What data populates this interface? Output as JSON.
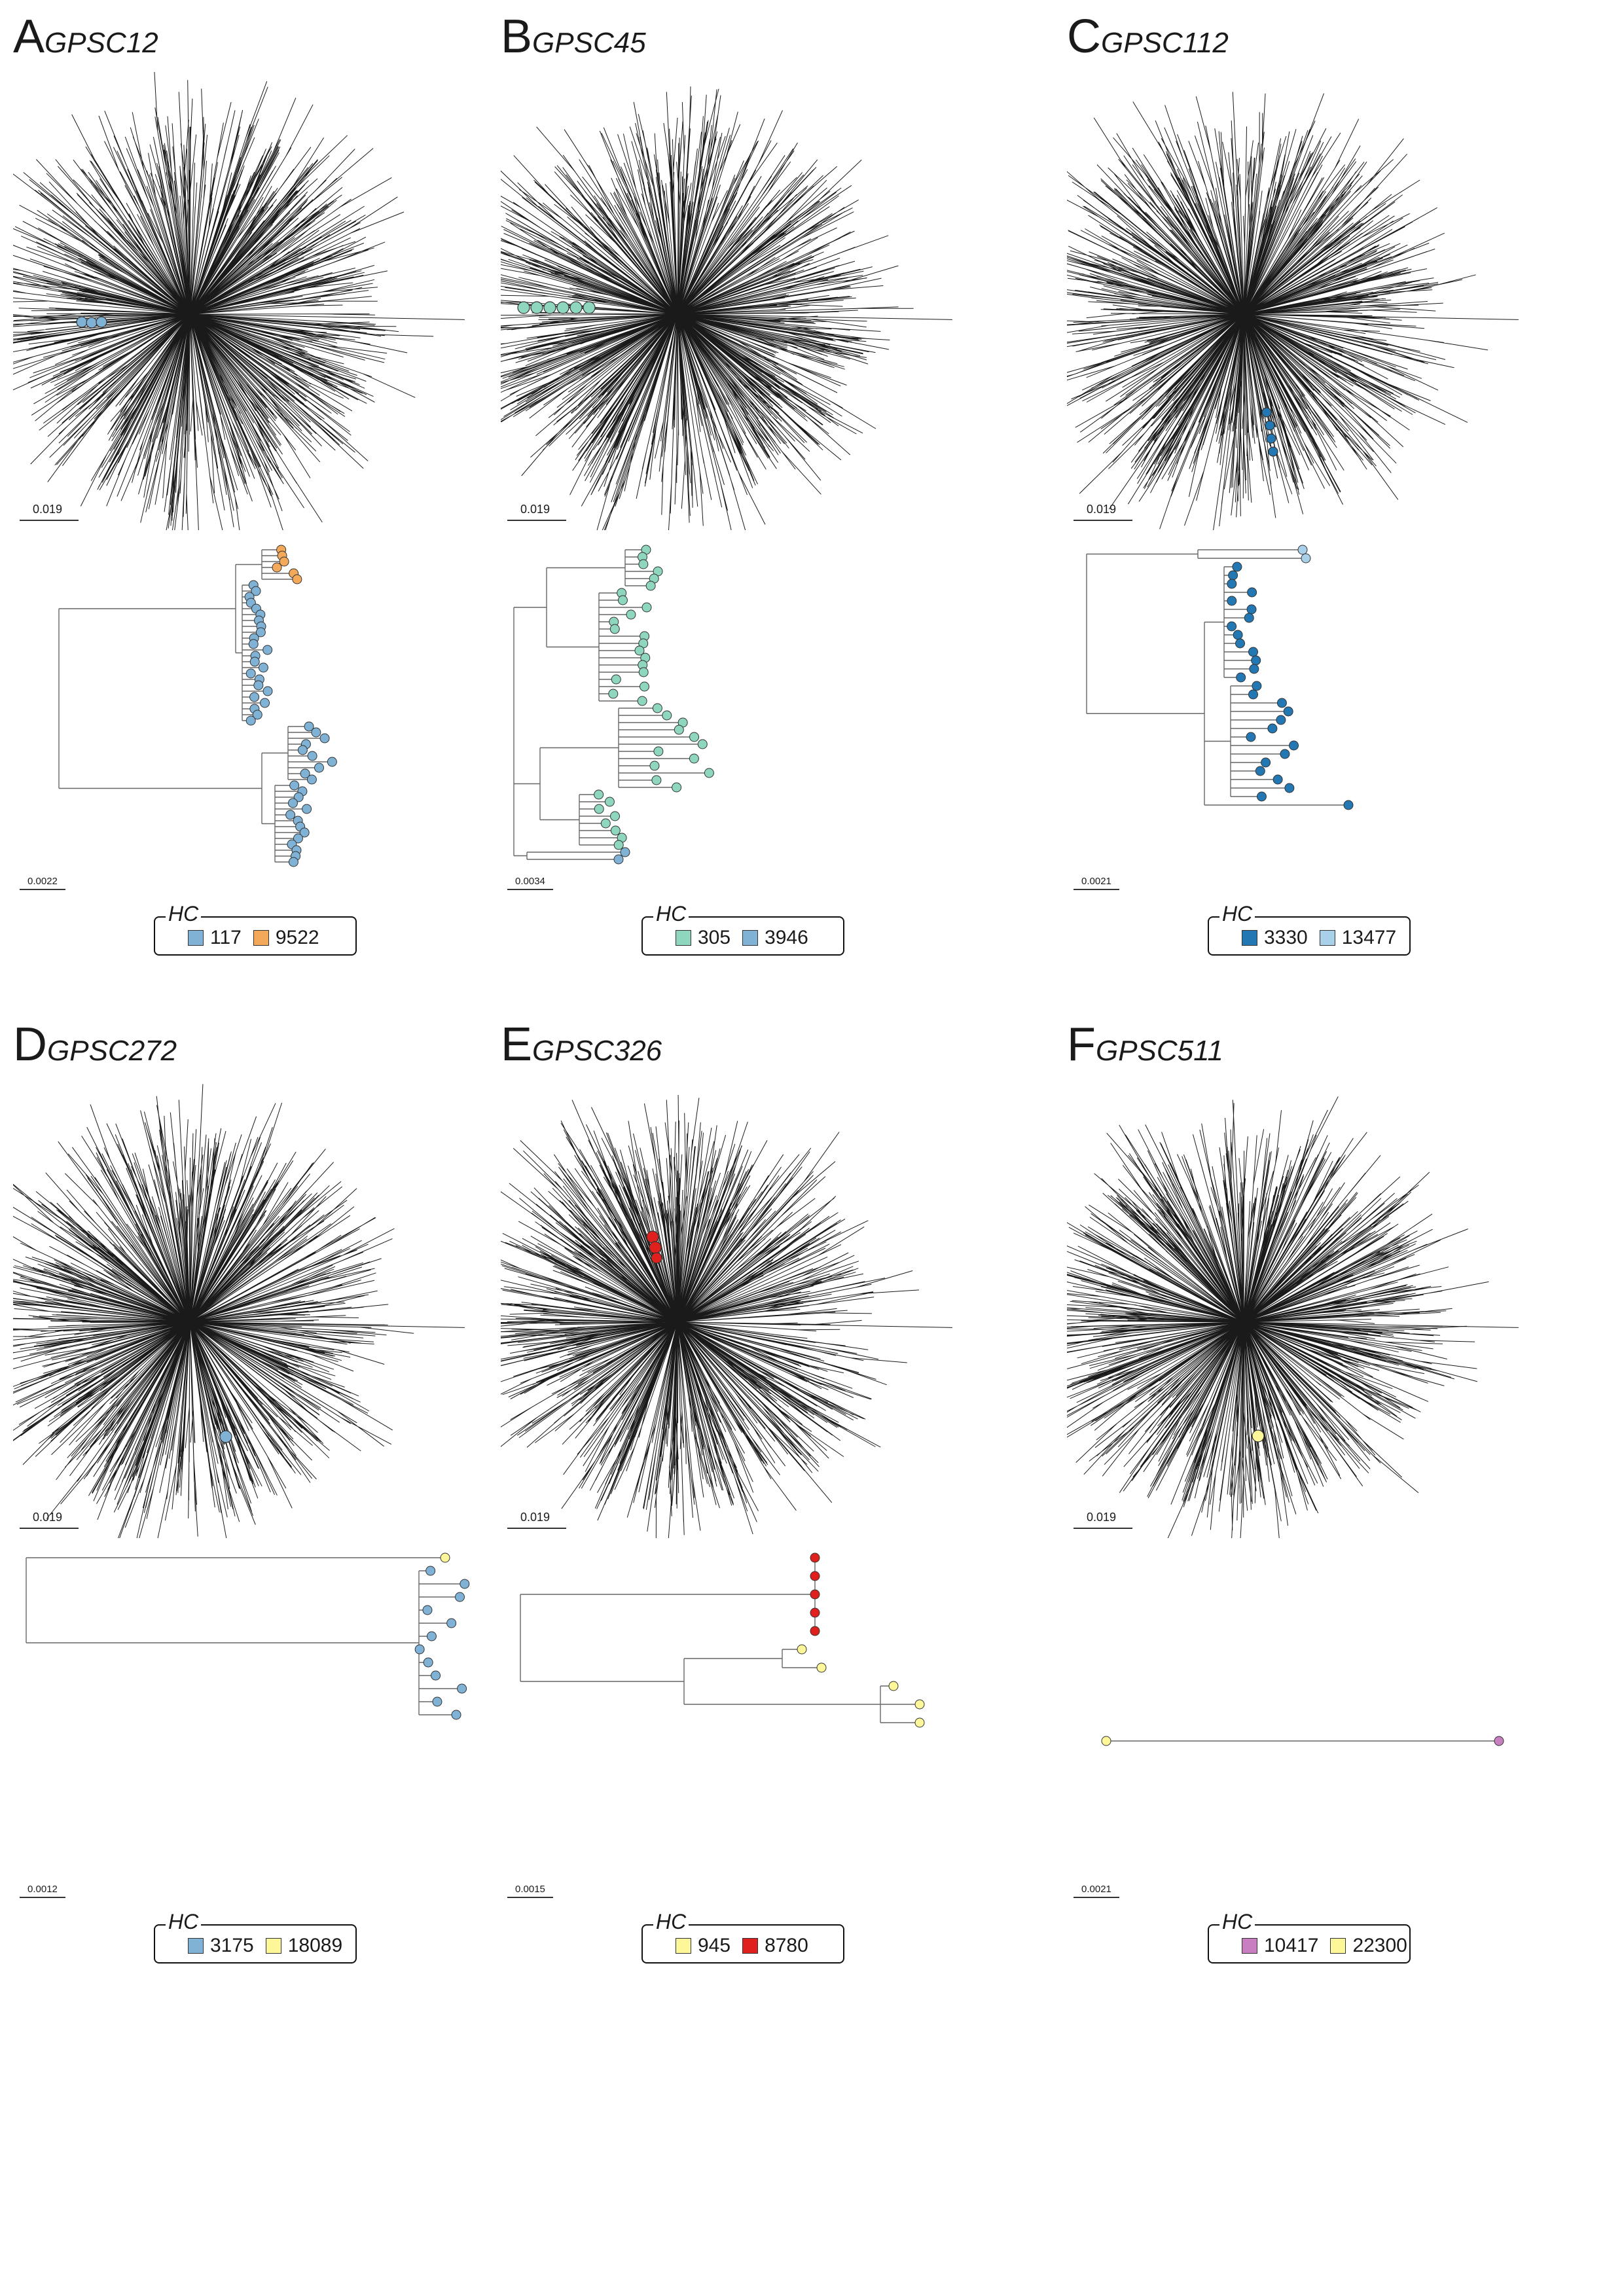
{
  "panels": [
    {
      "letter": "A",
      "name": "GPSC12",
      "radial_scale": "0.019",
      "tree_scale": "0.0022",
      "legend": {
        "title": "HC",
        "items": [
          {
            "label": "117",
            "color": "#7fb2d5"
          },
          {
            "label": "9522",
            "color": "#f4a95a"
          }
        ]
      }
    },
    {
      "letter": "B",
      "name": "GPSC45",
      "radial_scale": "0.019",
      "tree_scale": "0.0034",
      "legend": {
        "title": "HC",
        "items": [
          {
            "label": "305",
            "color": "#8fd6bf"
          },
          {
            "label": "3946",
            "color": "#7fb2d5"
          }
        ]
      }
    },
    {
      "letter": "C",
      "name": "GPSC112",
      "radial_scale": "0.019",
      "tree_scale": "0.0021",
      "legend": {
        "title": "HC",
        "items": [
          {
            "label": "3330",
            "color": "#2378b4"
          },
          {
            "label": "13477",
            "color": "#a8d0e8"
          }
        ]
      }
    },
    {
      "letter": "D",
      "name": "GPSC272",
      "radial_scale": "0.019",
      "tree_scale": "0.0012",
      "legend": {
        "title": "HC",
        "items": [
          {
            "label": "3175",
            "color": "#7fb2d5"
          },
          {
            "label": "18089",
            "color": "#fdf79a"
          }
        ]
      }
    },
    {
      "letter": "E",
      "name": "GPSC326",
      "radial_scale": "0.019",
      "tree_scale": "0.0015",
      "legend": {
        "title": "HC",
        "items": [
          {
            "label": "945",
            "color": "#fdf79a"
          },
          {
            "label": "8780",
            "color": "#e0201d"
          }
        ]
      }
    },
    {
      "letter": "F",
      "name": "GPSC511",
      "radial_scale": "0.019",
      "tree_scale": "0.0021",
      "legend": {
        "title": "HC",
        "items": [
          {
            "label": "10417",
            "color": "#c77fc2"
          },
          {
            "label": "22300",
            "color": "#fdf79a"
          }
        ]
      }
    }
  ]
}
